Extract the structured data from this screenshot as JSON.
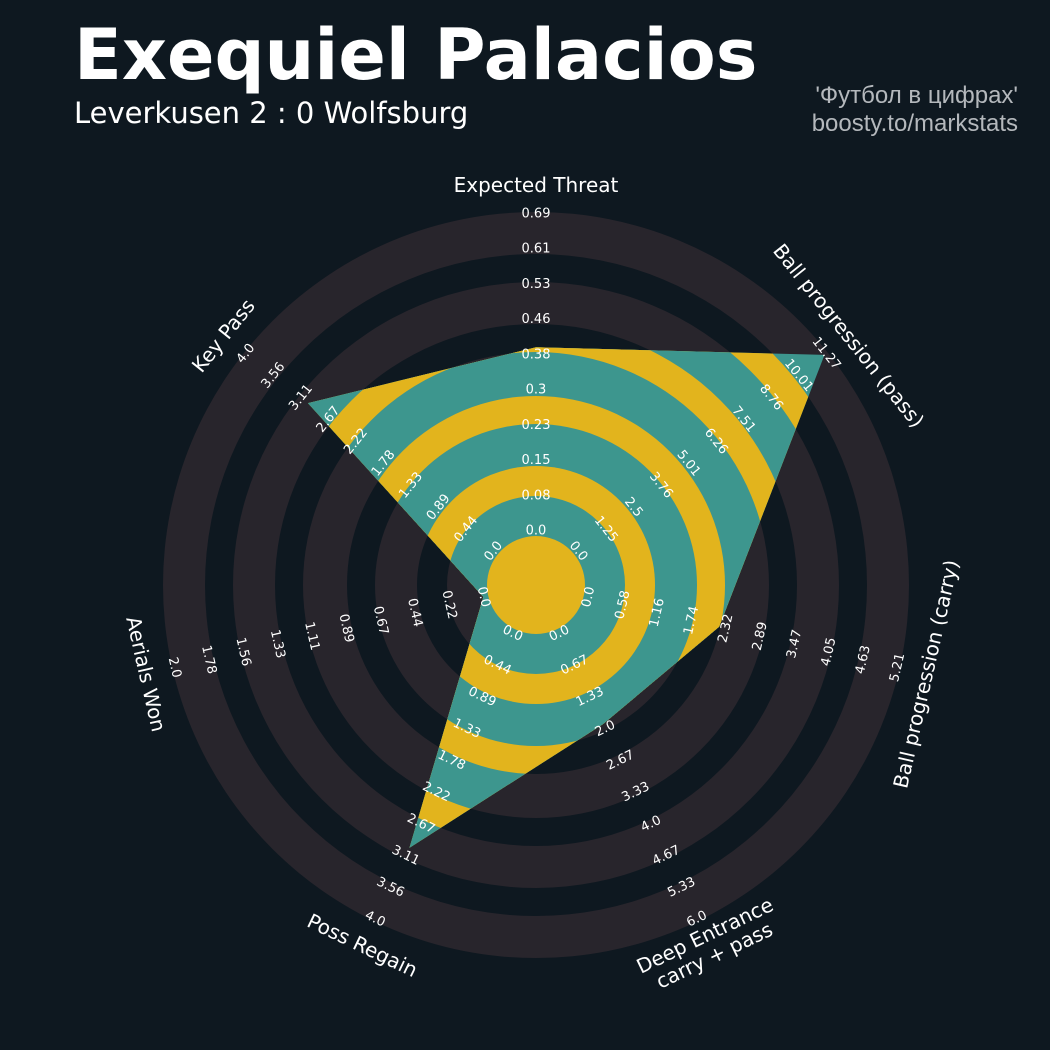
{
  "header": {
    "title": "Exequiel Palacios",
    "subtitle": "Leverkusen 2 : 0 Wolfsburg",
    "credit_line1": "'Футбол в цифрах'",
    "credit_line2": "boosty.to/markstats"
  },
  "colors": {
    "background": "#0e1820",
    "ring_light": "#28252c",
    "ring_dark": "#0e1820",
    "polygon_primary": "#3d968e",
    "polygon_secondary": "#e2b41d",
    "text": "#ffffff"
  },
  "chart_data": {
    "type": "radar",
    "title": "Exequiel Palacios",
    "axes": [
      {
        "name": [
          "Expected Threat"
        ],
        "min": 0,
        "max": 0.69,
        "value": 0.4,
        "ticks": [
          "0.0",
          "0.08",
          "0.15",
          "0.23",
          "0.3",
          "0.38",
          "0.46",
          "0.53",
          "0.61",
          "0.69"
        ]
      },
      {
        "name": [
          "Ball progression (pass)"
        ],
        "min": 0,
        "max": 11.27,
        "value": 11.2,
        "ticks": [
          "0.0",
          "1.25",
          "2.5",
          "3.76",
          "5.01",
          "6.26",
          "7.51",
          "8.76",
          "10.01",
          "11.27"
        ]
      },
      {
        "name": [
          "Ball progression (carry)"
        ],
        "min": 0,
        "max": 5.21,
        "value": 2.2,
        "ticks": [
          "0.0",
          "0.58",
          "1.16",
          "1.74",
          "2.32",
          "2.89",
          "3.47",
          "4.05",
          "4.63",
          "5.21"
        ]
      },
      {
        "name": [
          "Deep Entrance",
          "carry + pass"
        ],
        "min": 0,
        "max": 6.0,
        "value": 1.9,
        "ticks": [
          "0.0",
          "0.67",
          "1.33",
          "2.0",
          "2.67",
          "3.33",
          "4.0",
          "4.67",
          "5.33",
          "6.0"
        ]
      },
      {
        "name": [
          "Poss Regain"
        ],
        "min": 0,
        "max": 4.0,
        "value": 3.0,
        "ticks": [
          "0.0",
          "0.44",
          "0.89",
          "1.33",
          "1.78",
          "2.22",
          "2.67",
          "3.11",
          "3.56",
          "4.0"
        ]
      },
      {
        "name": [
          "Aerials Won"
        ],
        "min": 0,
        "max": 2.0,
        "value": 0.0,
        "ticks": [
          "0.0",
          "0.22",
          "0.44",
          "0.67",
          "0.89",
          "1.11",
          "1.33",
          "1.56",
          "1.78",
          "2.0"
        ]
      },
      {
        "name": [
          "Key Pass"
        ],
        "min": 0,
        "max": 4.0,
        "value": 3.0,
        "ticks": [
          "0.0",
          "0.44",
          "0.89",
          "1.33",
          "1.78",
          "2.22",
          "2.67",
          "3.11",
          "3.56",
          "4.0"
        ]
      }
    ]
  }
}
